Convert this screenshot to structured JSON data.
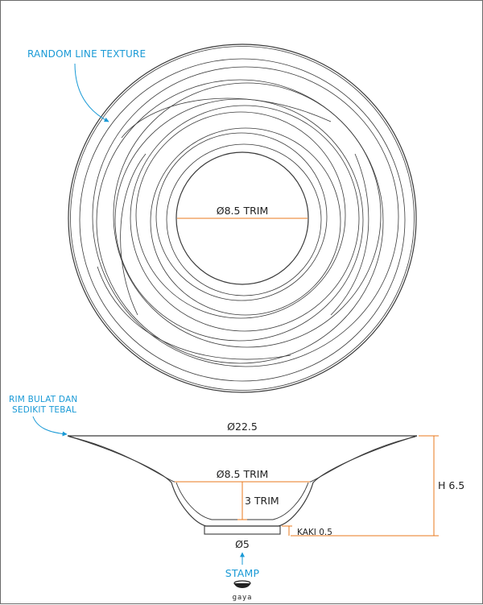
{
  "colors": {
    "outline": "#3a3a3a",
    "dimension": "#e8781e",
    "callout": "#1a9ad6"
  },
  "top_view": {
    "texture_label": "RANDOM LINE TEXTURE",
    "center_diameter_label": "Ø8.5 TRIM"
  },
  "side_view": {
    "rim_note_line1": "RIM BULAT DAN",
    "rim_note_line2": "SEDIKIT TEBAL",
    "top_diameter_label": "Ø22.5",
    "bowl_diameter_label": "Ø8.5 TRIM",
    "bowl_depth_label": "3 TRIM",
    "height_label": "H 6.5",
    "foot_label": "KAKI 0.5",
    "base_diameter_label": "Ø5"
  },
  "stamp": {
    "label": "STAMP",
    "logo_text": "gaya",
    "logo_icon": "bowl-logo-icon"
  }
}
